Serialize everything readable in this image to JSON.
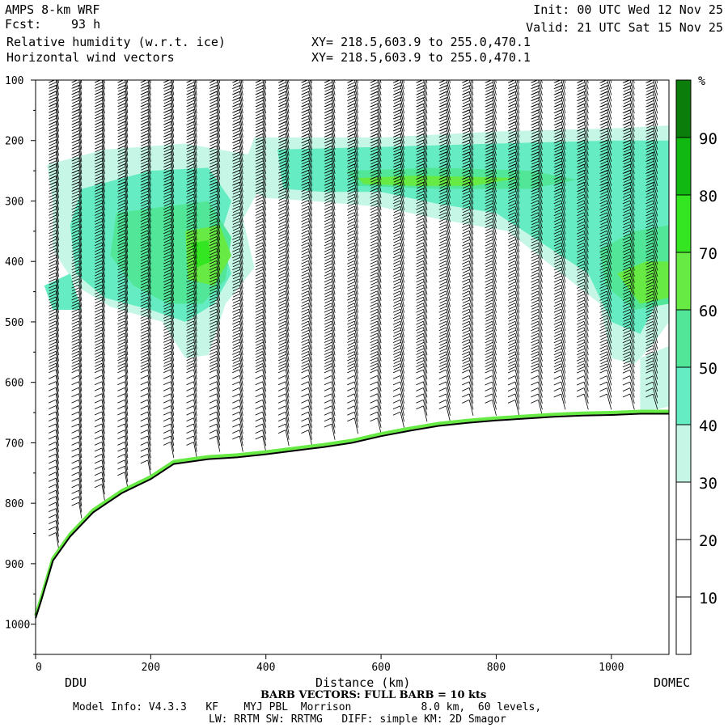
{
  "header": {
    "model": "AMPS 8-km WRF",
    "forecast_label": "Fcst:",
    "forecast_hours": "93 h",
    "field_1": "Relative humidity (w.r.t. ice)",
    "field_2": "Horizontal wind vectors",
    "xy_1": "XY= 218.5,603.9 to 255.0,470.1",
    "xy_2": "XY= 218.5,603.9 to 255.0,470.1",
    "init": "Init: 00 UTC Wed 12 Nov 25",
    "valid": "Valid: 21 UTC Sat 15 Nov 25"
  },
  "footer": {
    "barb_note": "BARB VECTORS: FULL BARB = 10 kts",
    "model_info": "Model Info: V4.3.3   KF    MYJ PBL  Morrison           8.0 km,  60 levels,",
    "model_info_2": "LW: RRTM SW: RRTMG   DIFF: simple KM: 2D Smagor"
  },
  "colors": {
    "rh_30_40": "#c6f7e6",
    "rh_40_50": "#66ecc2",
    "rh_50_60": "#52e699",
    "rh_60_70": "#67ea44",
    "rh_70_80": "#34e521",
    "rh_80_90": "#12b812",
    "rh_90_100": "#0b7d0b",
    "terrain": "#000000"
  },
  "chart_data": {
    "type": "heatmap",
    "xlabel": "Distance (km)",
    "ylabel": "",
    "xlim": [
      0,
      1100
    ],
    "ylim": [
      1050,
      100
    ],
    "x_ticks": [
      0,
      200,
      400,
      600,
      800,
      1000
    ],
    "y_ticks": [
      100,
      200,
      300,
      400,
      500,
      600,
      700,
      800,
      900,
      1000
    ],
    "start_label": "DDU",
    "end_label": "DOMEC",
    "colorbar": {
      "unit": "%",
      "levels": [
        10,
        20,
        30,
        40,
        50,
        60,
        70,
        80,
        90
      ],
      "bands": [
        {
          "min": 30,
          "max": 40,
          "color": "#c6f7e6"
        },
        {
          "min": 40,
          "max": 50,
          "color": "#66ecc2"
        },
        {
          "min": 50,
          "max": 60,
          "color": "#52e699"
        },
        {
          "min": 60,
          "max": 70,
          "color": "#67ea44"
        },
        {
          "min": 70,
          "max": 80,
          "color": "#34e521"
        },
        {
          "min": 80,
          "max": 90,
          "color": "#12b812"
        },
        {
          "min": 90,
          "max": 100,
          "color": "#0b7d0b"
        }
      ]
    },
    "terrain_surface": [
      {
        "x": 0,
        "p": 990
      },
      {
        "x": 10,
        "p": 960
      },
      {
        "x": 30,
        "p": 895
      },
      {
        "x": 60,
        "p": 855
      },
      {
        "x": 100,
        "p": 815
      },
      {
        "x": 150,
        "p": 783
      },
      {
        "x": 200,
        "p": 760
      },
      {
        "x": 240,
        "p": 735
      },
      {
        "x": 300,
        "p": 727
      },
      {
        "x": 350,
        "p": 724
      },
      {
        "x": 400,
        "p": 719
      },
      {
        "x": 450,
        "p": 713
      },
      {
        "x": 500,
        "p": 707
      },
      {
        "x": 550,
        "p": 700
      },
      {
        "x": 600,
        "p": 689
      },
      {
        "x": 650,
        "p": 680
      },
      {
        "x": 700,
        "p": 672
      },
      {
        "x": 750,
        "p": 667
      },
      {
        "x": 800,
        "p": 663
      },
      {
        "x": 850,
        "p": 660
      },
      {
        "x": 900,
        "p": 657
      },
      {
        "x": 950,
        "p": 655
      },
      {
        "x": 1000,
        "p": 654
      },
      {
        "x": 1050,
        "p": 652
      },
      {
        "x": 1100,
        "p": 652
      }
    ],
    "rh_regions": [
      {
        "rh": 35,
        "points": [
          [
            20,
            240
          ],
          [
            120,
            215
          ],
          [
            260,
            205
          ],
          [
            380,
            225
          ],
          [
            400,
            260
          ],
          [
            360,
            330
          ],
          [
            380,
            410
          ],
          [
            330,
            470
          ],
          [
            300,
            555
          ],
          [
            260,
            560
          ],
          [
            220,
            500
          ],
          [
            130,
            475
          ],
          [
            70,
            440
          ],
          [
            30,
            380
          ],
          [
            30,
            300
          ]
        ]
      },
      {
        "rh": 35,
        "points": [
          [
            380,
            195
          ],
          [
            600,
            195
          ],
          [
            800,
            185
          ],
          [
            1000,
            180
          ],
          [
            1100,
            175
          ],
          [
            1100,
            500
          ],
          [
            1070,
            540
          ],
          [
            1040,
            570
          ],
          [
            1000,
            560
          ],
          [
            980,
            470
          ],
          [
            900,
            410
          ],
          [
            820,
            350
          ],
          [
            700,
            330
          ],
          [
            600,
            310
          ],
          [
            480,
            300
          ],
          [
            400,
            295
          ],
          [
            350,
            270
          ]
        ]
      },
      {
        "rh": 35,
        "points": [
          [
            1050,
            560
          ],
          [
            1100,
            540
          ],
          [
            1100,
            640
          ],
          [
            1050,
            650
          ]
        ]
      },
      {
        "rh": 45,
        "points": [
          [
            80,
            280
          ],
          [
            200,
            250
          ],
          [
            300,
            245
          ],
          [
            340,
            300
          ],
          [
            320,
            360
          ],
          [
            340,
            420
          ],
          [
            310,
            470
          ],
          [
            260,
            500
          ],
          [
            200,
            480
          ],
          [
            120,
            460
          ],
          [
            70,
            420
          ],
          [
            60,
            340
          ]
        ]
      },
      {
        "rh": 45,
        "points": [
          [
            420,
            215
          ],
          [
            620,
            210
          ],
          [
            800,
            205
          ],
          [
            1000,
            200
          ],
          [
            1100,
            200
          ],
          [
            1100,
            430
          ],
          [
            1050,
            520
          ],
          [
            1000,
            500
          ],
          [
            960,
            420
          ],
          [
            880,
            370
          ],
          [
            800,
            320
          ],
          [
            700,
            305
          ],
          [
            600,
            285
          ],
          [
            500,
            285
          ],
          [
            430,
            280
          ]
        ]
      },
      {
        "rh": 45,
        "points": [
          [
            15,
            440
          ],
          [
            60,
            420
          ],
          [
            80,
            480
          ],
          [
            30,
            480
          ]
        ]
      },
      {
        "rh": 55,
        "points": [
          [
            140,
            320
          ],
          [
            220,
            310
          ],
          [
            300,
            300
          ],
          [
            340,
            360
          ],
          [
            330,
            430
          ],
          [
            290,
            470
          ],
          [
            230,
            470
          ],
          [
            170,
            440
          ],
          [
            130,
            390
          ]
        ]
      },
      {
        "rh": 55,
        "points": [
          [
            540,
            250
          ],
          [
            700,
            245
          ],
          [
            860,
            250
          ],
          [
            940,
            265
          ],
          [
            860,
            280
          ],
          [
            700,
            280
          ],
          [
            560,
            275
          ]
        ]
      },
      {
        "rh": 55,
        "points": [
          [
            980,
            380
          ],
          [
            1040,
            350
          ],
          [
            1100,
            340
          ],
          [
            1100,
            470
          ],
          [
            1040,
            480
          ],
          [
            990,
            440
          ]
        ]
      },
      {
        "rh": 65,
        "points": [
          [
            260,
            350
          ],
          [
            320,
            340
          ],
          [
            340,
            390
          ],
          [
            310,
            440
          ],
          [
            265,
            430
          ]
        ]
      },
      {
        "rh": 65,
        "points": [
          [
            560,
            262
          ],
          [
            660,
            258
          ],
          [
            760,
            260
          ],
          [
            840,
            262
          ],
          [
            760,
            275
          ],
          [
            660,
            275
          ],
          [
            570,
            272
          ]
        ]
      },
      {
        "rh": 65,
        "points": [
          [
            1010,
            420
          ],
          [
            1060,
            400
          ],
          [
            1100,
            400
          ],
          [
            1100,
            460
          ],
          [
            1050,
            470
          ]
        ]
      },
      {
        "rh": 75,
        "points": [
          [
            270,
            370
          ],
          [
            300,
            365
          ],
          [
            305,
            400
          ],
          [
            280,
            410
          ]
        ]
      }
    ],
    "wind_profile_x": [
      0,
      40,
      80,
      120,
      160,
      200,
      240,
      280,
      320,
      360,
      400,
      440,
      480,
      520,
      560,
      600,
      640,
      680,
      720,
      760,
      800,
      840,
      880,
      920,
      960,
      1000,
      1040,
      1080
    ]
  }
}
